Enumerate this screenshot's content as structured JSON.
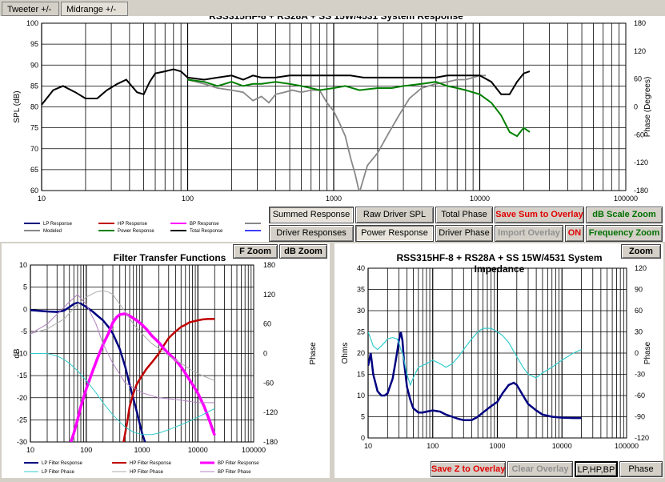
{
  "tabs": [
    "Tweeter +/-",
    "Midrange  +/-"
  ],
  "colors": {
    "navy": "#000080",
    "red": "#c00000",
    "magenta": "#ff00ff",
    "gray": "#888888",
    "green": "#008000",
    "black": "#000000",
    "cyan": "#33cccc",
    "lightgray": "#aaaaaa",
    "lavender": "#b080c0",
    "blue": "#4040ff"
  },
  "top_buttons": [
    {
      "label": "Summed Response",
      "style": "pressed"
    },
    {
      "label": "Raw Driver SPL",
      "style": ""
    },
    {
      "label": "Total Phase",
      "style": ""
    },
    {
      "label": "Save Sum to Overlay",
      "style": "red"
    },
    {
      "label": "dB Scale Zoom",
      "style": "green"
    },
    {
      "label": "Driver Responses",
      "style": ""
    },
    {
      "label": "Power Response",
      "style": "pressed"
    },
    {
      "label": "Driver Phase",
      "style": ""
    },
    {
      "label": "Import Overlay",
      "style": "gray"
    },
    {
      "label": "ON",
      "style": "red"
    },
    {
      "label": "Frequency Zoom",
      "style": "green"
    }
  ],
  "filter_buttons": [
    "F Zoom",
    "dB Zoom"
  ],
  "impedance_buttons": {
    "zoom": "Zoom",
    "save": "Save Z to Overlay",
    "clear": "Clear Overlay",
    "mode": "LP,HP,BP",
    "phase": "Phase"
  },
  "chart_data": [
    {
      "type": "line",
      "title": "RSS315HF-8 + RS28A + SS 15W/4531  System Response",
      "xlabel": "",
      "ylabel": "SPL (dB)",
      "y2label": "Phase (Degrees)",
      "xscale": "log",
      "xlim": [
        10,
        100000
      ],
      "ylim": [
        60,
        100
      ],
      "y2lim": [
        -180,
        180
      ],
      "x_ticks": [
        "10",
        "100",
        "1000",
        "10000",
        "100000"
      ],
      "y_ticks": [
        "60",
        "65",
        "70",
        "75",
        "80",
        "85",
        "90",
        "95",
        "100"
      ],
      "y2_ticks": [
        "-180",
        "-120",
        "-60",
        "0",
        "60",
        "120",
        "180"
      ],
      "legend": [
        "LP Response",
        "HP Response",
        "BP Response",
        "",
        "Modeled",
        "Power Response",
        "Total Response",
        ""
      ],
      "series": [
        {
          "name": "Modeled",
          "color": "#888888",
          "x": [
            100,
            130,
            160,
            200,
            240,
            280,
            320,
            360,
            400,
            460,
            520,
            600,
            700,
            800,
            900,
            1000,
            1100,
            1200,
            1300,
            1400,
            1500,
            1700,
            2000,
            2400,
            2800,
            3300,
            4000,
            5000,
            6000,
            7000,
            8000,
            9000,
            10000,
            11000
          ],
          "y": [
            86.5,
            85.5,
            84.5,
            84,
            83.5,
            81.5,
            82.5,
            81,
            83,
            83.5,
            84,
            83.5,
            84,
            84,
            81,
            79,
            76,
            73,
            68,
            64,
            59.5,
            66,
            69,
            74,
            78,
            82,
            84.5,
            85.5,
            86,
            86.5,
            86.5,
            87,
            87.5,
            87.5
          ]
        },
        {
          "name": "Power Response",
          "color": "#008000",
          "x": [
            100,
            130,
            160,
            200,
            240,
            280,
            320,
            400,
            500,
            600,
            700,
            800,
            1000,
            1200,
            1500,
            2000,
            2500,
            3000,
            4000,
            5000,
            6000,
            7000,
            8000,
            10000,
            12000,
            14000,
            16000,
            18000,
            20000,
            22000
          ],
          "y": [
            86.5,
            86,
            85,
            86,
            85,
            85.5,
            85.5,
            86,
            85.5,
            85,
            84.5,
            84,
            84.5,
            85,
            84,
            84.5,
            84.5,
            85,
            85.5,
            86,
            85,
            84.5,
            84,
            83,
            81,
            78,
            74,
            73,
            75,
            74
          ]
        },
        {
          "name": "Total Response",
          "color": "#000000",
          "x": [
            10,
            12,
            14,
            17,
            20,
            24,
            28,
            33,
            38,
            45,
            50,
            55,
            60,
            70,
            80,
            90,
            100,
            130,
            160,
            200,
            240,
            280,
            320,
            400,
            500,
            600,
            800,
            1000,
            1300,
            1600,
            2000,
            2500,
            3000,
            4000,
            5000,
            6000,
            7000,
            8000,
            10000,
            12000,
            14000,
            16000,
            18000,
            20000,
            22000
          ],
          "y": [
            80.5,
            84,
            85,
            83.5,
            82,
            82,
            84,
            85.5,
            86.5,
            83.5,
            83,
            86,
            88,
            88.5,
            89,
            88.5,
            87,
            86.5,
            87,
            87.5,
            86.5,
            87.5,
            87,
            87,
            87.5,
            87.5,
            87.5,
            87.5,
            87.5,
            87,
            87,
            87,
            87,
            87,
            87,
            87.5,
            87.5,
            87.5,
            87.5,
            86,
            83,
            83,
            86,
            88,
            88.5
          ]
        }
      ]
    },
    {
      "type": "line",
      "title": "Filter Transfer Functions",
      "xlabel": "",
      "ylabel": "dB",
      "y2label": "Phase",
      "xscale": "log",
      "xlim": [
        10,
        100000
      ],
      "ylim": [
        -30,
        10
      ],
      "y2lim": [
        -180,
        180
      ],
      "x_ticks": [
        "10",
        "100",
        "1000",
        "10000",
        "100000"
      ],
      "y_ticks": [
        "-30",
        "-25",
        "-20",
        "-15",
        "-10",
        "-5",
        "0",
        "5",
        "10"
      ],
      "y2_ticks": [
        "-180",
        "-120",
        "-60",
        "0",
        "60",
        "120",
        "180"
      ],
      "legend": [
        "LP Filter Response",
        "HP Filter Response",
        "BP Filter Response",
        "LP Filter Phase",
        "HP Filter Phase",
        "BP Filter Phase"
      ],
      "series": [
        {
          "name": "LP Filter Response",
          "color": "#000080",
          "x": [
            10,
            20,
            30,
            40,
            50,
            60,
            70,
            80,
            100,
            130,
            160,
            200,
            250,
            300,
            400,
            500,
            600,
            800,
            1000,
            1200
          ],
          "y": [
            -0.2,
            -0.5,
            -0.6,
            -0.3,
            0.5,
            1.2,
            1.5,
            1.3,
            0.5,
            -0.5,
            -1.5,
            -2.5,
            -4,
            -5.5,
            -9,
            -13,
            -17,
            -23,
            -28,
            -31
          ]
        },
        {
          "name": "HP Filter Response",
          "color": "#c00000",
          "x": [
            450,
            500,
            550,
            600,
            700,
            800,
            1000,
            1200,
            1500,
            2000,
            2500,
            3000,
            4000,
            5000,
            6000,
            7000,
            8000,
            10000,
            12000,
            15000,
            20000
          ],
          "y": [
            -31,
            -28,
            -25,
            -22,
            -19,
            -17,
            -15,
            -13.5,
            -12,
            -10,
            -8,
            -6.5,
            -5,
            -4,
            -3.5,
            -3,
            -2.8,
            -2.5,
            -2.3,
            -2.2,
            -2.2
          ]
        },
        {
          "name": "BP Filter Response",
          "color": "#ff00ff",
          "x": [
            50,
            60,
            70,
            80,
            100,
            130,
            160,
            200,
            250,
            300,
            350,
            400,
            500,
            600,
            800,
            1000,
            1200,
            1500,
            2000,
            2500,
            3000,
            4000,
            5000,
            6000,
            8000,
            10000,
            13000,
            16000,
            20000
          ],
          "y": [
            -31,
            -28,
            -25,
            -22,
            -18,
            -14,
            -11,
            -8,
            -5.5,
            -3,
            -1.8,
            -1.2,
            -1,
            -1.5,
            -2.5,
            -3.5,
            -4.5,
            -6,
            -7.5,
            -9,
            -10,
            -11.5,
            -13,
            -14.5,
            -17,
            -19,
            -22,
            -25,
            -28.5
          ]
        },
        {
          "name": "LP Filter Phase",
          "color": "#33cccc",
          "x": [
            10,
            20,
            30,
            40,
            50,
            70,
            100,
            150,
            200,
            300,
            500,
            700,
            1000,
            1500,
            2000,
            3000,
            5000,
            8000,
            12000,
            20000
          ],
          "y": [
            0,
            0,
            -5,
            -12,
            -20,
            -35,
            -55,
            -80,
            -100,
            -125,
            -150,
            -160,
            -165,
            -165,
            -162,
            -155,
            -145,
            -135,
            -125,
            -112
          ]
        },
        {
          "name": "HP Filter Phase",
          "color": "#aaaaaa",
          "x": [
            10,
            20,
            40,
            70,
            100,
            150,
            200,
            250,
            300,
            400,
            500,
            700,
            1000,
            1500,
            2000,
            3000,
            5000,
            8000,
            12000,
            20000
          ],
          "y": [
            40,
            50,
            70,
            100,
            115,
            125,
            128,
            125,
            120,
            100,
            85,
            60,
            40,
            20,
            10,
            -5,
            -20,
            -35,
            -45,
            -55
          ]
        },
        {
          "name": "BP Filter Phase",
          "color": "#b080c0",
          "x": [
            10,
            20,
            30,
            50,
            70,
            100,
            150,
            200,
            300,
            500,
            1000,
            2000,
            5000,
            10000,
            20000
          ],
          "y": [
            40,
            60,
            80,
            105,
            120,
            100,
            60,
            20,
            -20,
            -60,
            -80,
            -90,
            -95,
            -100,
            -100
          ]
        }
      ]
    },
    {
      "type": "line",
      "title": "RSS315HF-8 + RS28A + SS 15W/4531  System Impedance",
      "xlabel": "",
      "ylabel": "Ohms",
      "y2label": "Phase",
      "xscale": "log",
      "xlim": [
        10,
        100000
      ],
      "ylim": [
        0,
        40
      ],
      "y2lim": [
        -120,
        120
      ],
      "x_ticks": [
        "10",
        "100",
        "1000",
        "10000",
        "100000"
      ],
      "y_ticks": [
        "0",
        "5",
        "10",
        "15",
        "20",
        "25",
        "30",
        "35",
        "40"
      ],
      "y2_ticks": [
        "-120",
        "-90",
        "-60",
        "-30",
        "0",
        "30",
        "60",
        "90",
        "120"
      ],
      "series": [
        {
          "name": "Impedance",
          "color": "#000080",
          "x": [
            10,
            11,
            12,
            14,
            16,
            18,
            20,
            24,
            28,
            30,
            32,
            34,
            36,
            40,
            45,
            50,
            60,
            70,
            80,
            100,
            130,
            160,
            200,
            250,
            300,
            400,
            500,
            600,
            800,
            1000,
            1200,
            1500,
            1800,
            2000,
            2500,
            3000,
            4000,
            5000,
            7000,
            10000,
            15000,
            20000
          ],
          "y": [
            17,
            20,
            15,
            11,
            10,
            10,
            10.5,
            14,
            20,
            23,
            25,
            23,
            18,
            12,
            9,
            7,
            6,
            6,
            6.2,
            6.5,
            6.2,
            5.5,
            5,
            4.5,
            4.2,
            4.2,
            5,
            6,
            7.5,
            8.5,
            10.5,
            12.5,
            13,
            12.5,
            10,
            8,
            6.5,
            5.5,
            5,
            4.8,
            4.7,
            4.7
          ]
        },
        {
          "name": "Phase",
          "color": "#33cccc",
          "x": [
            10,
            11,
            12,
            14,
            16,
            18,
            20,
            24,
            28,
            30,
            32,
            34,
            36,
            40,
            45,
            50,
            60,
            80,
            100,
            130,
            160,
            200,
            250,
            300,
            400,
            500,
            600,
            800,
            1000,
            1200,
            1500,
            2000,
            2500,
            3000,
            4000,
            5000,
            7000,
            10000,
            15000,
            20000
          ],
          "y": [
            30,
            20,
            10,
            5,
            10,
            15,
            20,
            22,
            20,
            15,
            5,
            0,
            -10,
            -30,
            -45,
            -35,
            -20,
            -15,
            -10,
            -15,
            -20,
            -15,
            -5,
            5,
            20,
            30,
            35,
            35,
            30,
            25,
            15,
            -5,
            -20,
            -30,
            -35,
            -28,
            -20,
            -10,
            0,
            5
          ]
        }
      ]
    }
  ]
}
